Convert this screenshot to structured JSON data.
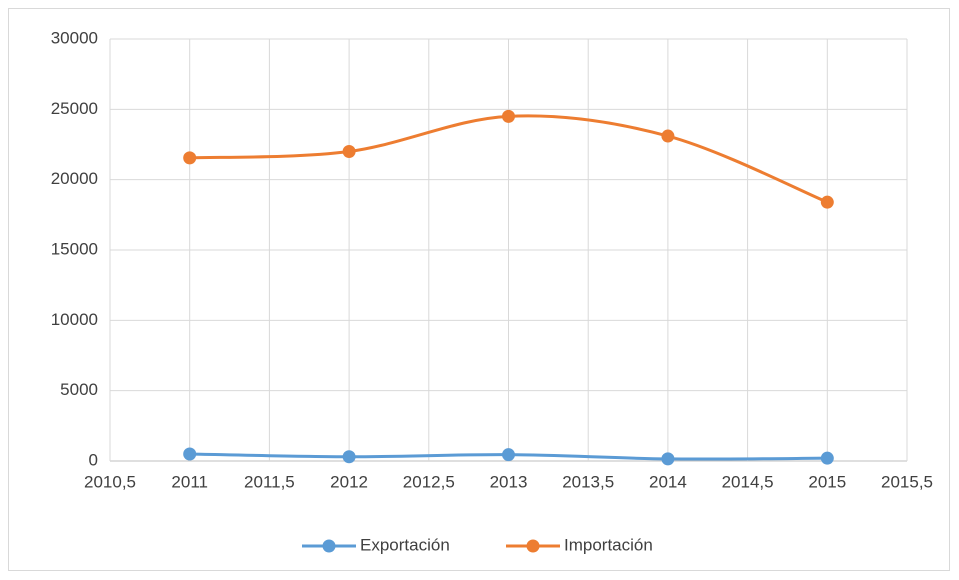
{
  "chart_data": {
    "type": "line",
    "x": [
      2011,
      2012,
      2013,
      2014,
      2015
    ],
    "series": [
      {
        "name": "Exportación",
        "color": "#5b9bd5",
        "values": [
          500,
          300,
          450,
          150,
          200
        ]
      },
      {
        "name": "Importación",
        "color": "#ed7d31",
        "values": [
          21550,
          22000,
          24500,
          23100,
          18400
        ]
      }
    ],
    "xlim": [
      2010.5,
      2015.5
    ],
    "xticks": [
      {
        "value": 2010.5,
        "label": "2010,5"
      },
      2011,
      {
        "value": 2011.5,
        "label": "2011,5"
      },
      2012,
      {
        "value": 2012.5,
        "label": "2012,5"
      },
      2013,
      {
        "value": 2013.5,
        "label": "2013,5"
      },
      2014,
      {
        "value": 2014.5,
        "label": "2014,5"
      },
      2015,
      {
        "value": 2015.5,
        "label": "2015,5"
      }
    ],
    "ylim": [
      0,
      30000
    ],
    "yticks": [
      0,
      5000,
      10000,
      15000,
      20000,
      25000,
      30000
    ],
    "grid": true,
    "smooth": true,
    "legend": "bottom"
  }
}
